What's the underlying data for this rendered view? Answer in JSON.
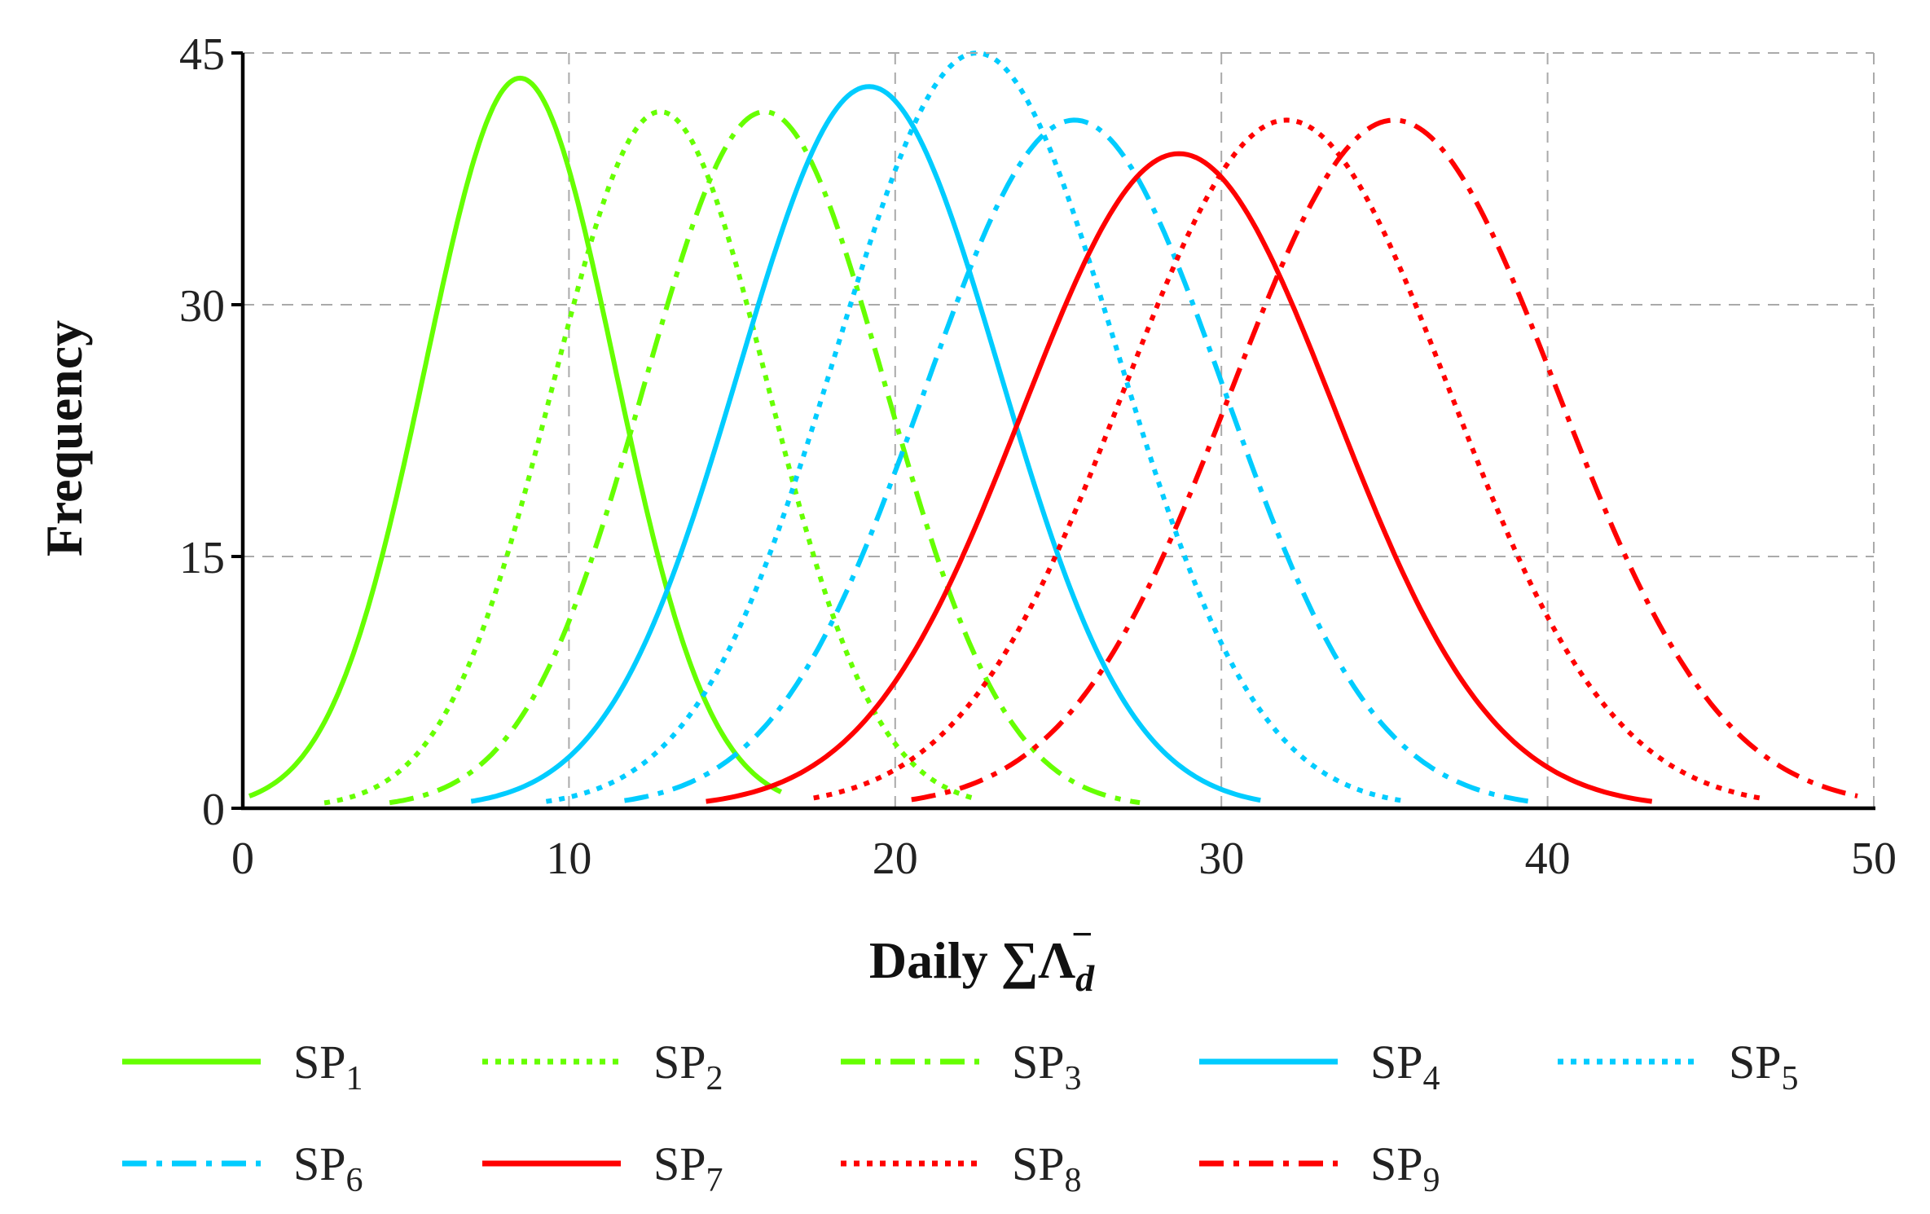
{
  "chart_data": {
    "type": "line",
    "title": "",
    "xlabel": "Daily ∑Λ",
    "xlabel_sub": "d",
    "xlabel_sup": "−",
    "ylabel": "Frequency",
    "xlim": [
      0,
      50
    ],
    "ylim": [
      0,
      45
    ],
    "xticks": [
      0,
      10,
      20,
      30,
      40,
      50
    ],
    "yticks": [
      0,
      15,
      30,
      45
    ],
    "grid": true,
    "legend_position": "bottom",
    "series": [
      {
        "name": "SP",
        "sub": "1",
        "color": "#66ff00",
        "style": "solid",
        "peak_x": 8.5,
        "peak_y": 43.5,
        "sigma": 2.9,
        "x_range": [
          0.2,
          16.5
        ]
      },
      {
        "name": "SP",
        "sub": "2",
        "color": "#66ff00",
        "style": "dotted",
        "peak_x": 12.8,
        "peak_y": 41.5,
        "sigma": 3.3,
        "x_range": [
          2.5,
          22.5
        ]
      },
      {
        "name": "SP",
        "sub": "3",
        "color": "#66ff00",
        "style": "dashdot",
        "peak_x": 16.0,
        "peak_y": 41.5,
        "sigma": 3.7,
        "x_range": [
          4.5,
          27.5
        ]
      },
      {
        "name": "SP",
        "sub": "4",
        "color": "#00ccff",
        "style": "solid",
        "peak_x": 19.2,
        "peak_y": 43.0,
        "sigma": 4.0,
        "x_range": [
          7.0,
          31.2
        ]
      },
      {
        "name": "SP",
        "sub": "5",
        "color": "#00ccff",
        "style": "dotted",
        "peak_x": 22.5,
        "peak_y": 45.0,
        "sigma": 4.3,
        "x_range": [
          9.3,
          35.5
        ]
      },
      {
        "name": "SP",
        "sub": "6",
        "color": "#00ccff",
        "style": "dashdot",
        "peak_x": 25.5,
        "peak_y": 41.0,
        "sigma": 4.6,
        "x_range": [
          11.7,
          39.5
        ]
      },
      {
        "name": "SP",
        "sub": "7",
        "color": "#ff0000",
        "style": "solid",
        "peak_x": 28.7,
        "peak_y": 39.0,
        "sigma": 4.8,
        "x_range": [
          14.2,
          43.2
        ]
      },
      {
        "name": "SP",
        "sub": "8",
        "color": "#ff0000",
        "style": "dotted",
        "peak_x": 32.0,
        "peak_y": 41.0,
        "sigma": 5.0,
        "x_range": [
          17.5,
          46.5
        ]
      },
      {
        "name": "SP",
        "sub": "9",
        "color": "#ff0000",
        "style": "dashdot",
        "peak_x": 35.3,
        "peak_y": 41.0,
        "sigma": 5.0,
        "x_range": [
          20.5,
          49.5
        ]
      }
    ]
  }
}
